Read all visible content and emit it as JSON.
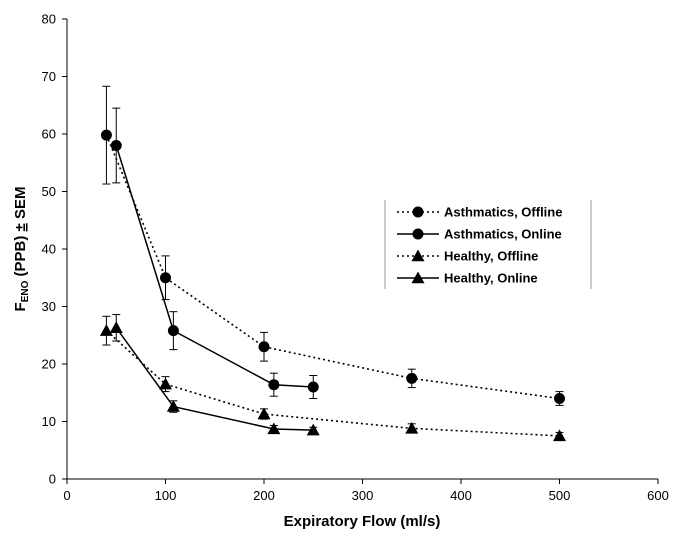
{
  "chart_data": {
    "type": "line",
    "xlabel": "Expiratory Flow (ml/s)",
    "ylabel": {
      "main": "F",
      "sub": "ENO",
      "rest": " (PPB) ",
      "pm": "±",
      "tail": " SEM"
    },
    "xlim": [
      0,
      600
    ],
    "ylim": [
      0,
      80
    ],
    "xticks": [
      0,
      100,
      200,
      300,
      400,
      500,
      600
    ],
    "yticks": [
      0,
      10,
      20,
      30,
      40,
      50,
      60,
      70,
      80
    ],
    "grid": false,
    "legend_position": "right",
    "series": [
      {
        "name": "Asthmatics, Offline",
        "marker": "circle",
        "line": "dotted",
        "x": [
          40,
          100,
          200,
          350,
          500
        ],
        "y": [
          59.8,
          35.0,
          23.0,
          17.5,
          14.0
        ],
        "err": [
          8.5,
          3.8,
          2.5,
          1.6,
          1.2
        ]
      },
      {
        "name": "Asthmatics, Online",
        "marker": "circle",
        "line": "solid",
        "x": [
          50,
          108,
          210,
          250
        ],
        "y": [
          58.0,
          25.8,
          16.4,
          16.0
        ],
        "err": [
          6.5,
          3.3,
          2.0,
          2.0
        ]
      },
      {
        "name": "Healthy, Offline",
        "marker": "triangle",
        "line": "dotted",
        "x": [
          40,
          100,
          200,
          350,
          500
        ],
        "y": [
          25.8,
          16.5,
          11.3,
          8.8,
          7.5
        ],
        "err": [
          2.5,
          1.3,
          0.9,
          0.8,
          0.6
        ]
      },
      {
        "name": "Healthy, Online",
        "marker": "triangle",
        "line": "solid",
        "x": [
          50,
          108,
          210,
          250
        ],
        "y": [
          26.3,
          12.6,
          8.7,
          8.5
        ],
        "err": [
          2.3,
          1.0,
          0.6,
          0.5
        ]
      }
    ]
  }
}
